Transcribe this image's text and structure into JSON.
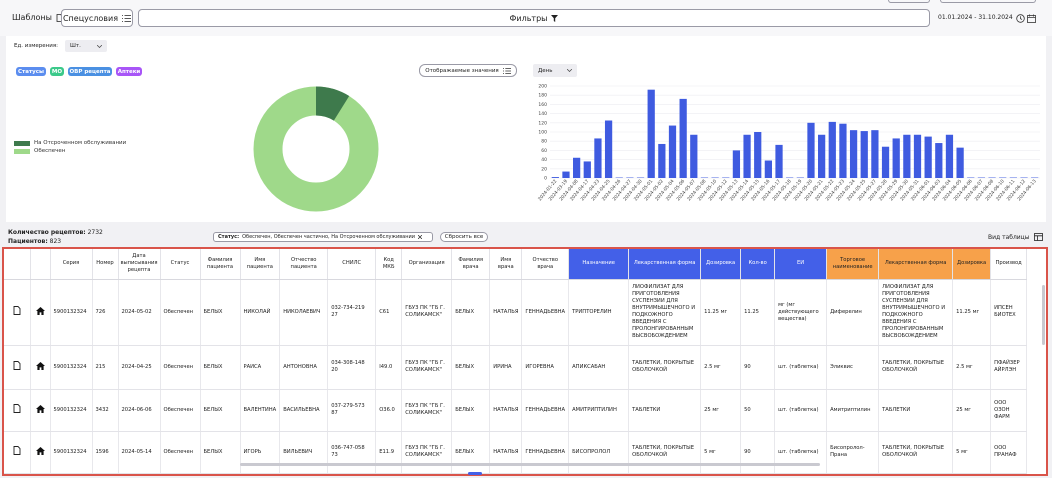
{
  "toolbar": {
    "templates_label": "Шаблоны",
    "special_label": "Спецусловия",
    "filters_label": "Фильтры",
    "date_range": "01.01.2024 - 31.10.2024"
  },
  "panel": {
    "unit_label": "Ед. измерения:",
    "unit_value": "Шт.",
    "tags": [
      {
        "label": "Статусы",
        "color": "#5b8def"
      },
      {
        "label": "МО",
        "color": "#3bc98a"
      },
      {
        "label": "ОВР рецепта",
        "color": "#4a90e2"
      },
      {
        "label": "Аптеки",
        "color": "#a855f7"
      }
    ],
    "display_values_label": "Отображаемые значения",
    "period_value": "День"
  },
  "donut": {
    "legend": [
      {
        "label": "На Отсроченном обслуживании",
        "color": "#3e7a4c"
      },
      {
        "label": "Обеспечен",
        "color": "#9fd98a"
      }
    ]
  },
  "chart_data": {
    "type": "bar",
    "ylim": [
      0,
      200
    ],
    "yticks": [
      "0",
      "20",
      "40",
      "60",
      "80",
      "100",
      "120",
      "140",
      "160",
      "180",
      "200"
    ],
    "categories": [
      "2024-01-22",
      "2024-03-19",
      "2024-04-08",
      "2024-04-17",
      "2024-04-23",
      "2024-04-25",
      "2024-04-26",
      "2024-04-27",
      "2024-04-30",
      "2024-05-01",
      "2024-05-02",
      "2024-05-04",
      "2024-05-06",
      "2024-05-07",
      "2024-05-08",
      "2024-05-10",
      "2024-05-12",
      "2024-05-13",
      "2024-05-14",
      "2024-05-15",
      "2024-05-16",
      "2024-05-17",
      "2024-05-18",
      "2024-05-19",
      "2024-05-20",
      "2024-05-21",
      "2024-05-22",
      "2024-05-23",
      "2024-05-24",
      "2024-05-25",
      "2024-05-27",
      "2024-05-28",
      "2024-05-29",
      "2024-05-30",
      "2024-05-31",
      "2024-06-01",
      "2024-06-03",
      "2024-06-04",
      "2024-06-05",
      "2024-06-06",
      "2024-06-07",
      "2024-06-08",
      "2024-06-10",
      "2024-06-11",
      "2024-06-12",
      "2024-06-13"
    ],
    "values": [
      2,
      14,
      44,
      36,
      86,
      125,
      1,
      1,
      1,
      192,
      74,
      114,
      172,
      94,
      1,
      1,
      1,
      60,
      94,
      100,
      38,
      72,
      1,
      1,
      120,
      94,
      122,
      118,
      104,
      102,
      104,
      68,
      86,
      94,
      94,
      90,
      76,
      94,
      66,
      1,
      1,
      1,
      1,
      1,
      1,
      1
    ],
    "color": "#3f5be0"
  },
  "stats": {
    "recipes_label": "Количество рецептов:",
    "recipes_value": "2732",
    "patients_label": "Пациентов:",
    "patients_value": "823",
    "status_filter_label": "Статус:",
    "status_filter_value": "Обеспечен, Обеспечен частично, На Отсроченном обслуживании",
    "reset_label": "Сбросить все",
    "table_view_label": "Вид таблицы"
  },
  "table": {
    "headers": [
      "Серия",
      "Номер",
      "Дата выписывания рецепта",
      "Статус",
      "Фамилия пациента",
      "Имя пациента",
      "Отчество пациента",
      "СНИЛС",
      "Код МКБ",
      "Организация",
      "Фамилия врача",
      "Имя врача",
      "Отчество врача",
      "Назначение",
      "Лекарственная форма",
      "Дозировка",
      "Кол-во",
      "ЕИ",
      "Торговое наименование",
      "Лекарственная форма",
      "Дозировка",
      "Производ"
    ],
    "rows": [
      [
        "5900132324",
        "726",
        "2024-05-02",
        "Обеспечен",
        "БЕЛЫХ",
        "НИКОЛАЙ",
        "НИКОЛАЕВИЧ",
        "032-734-219 27",
        "C61",
        "ГБУЗ ПК \"ГБ Г. СОЛИКАМСК\"",
        "БЕЛЫХ",
        "НАТАЛЬЯ",
        "ГЕННАДЬЕВНА",
        "ТРИПТОРЕЛИН",
        "ЛИОФИЛИЗАТ ДЛЯ ПРИГОТОВЛЕНИЯ СУСПЕНЗИИ ДЛЯ ВНУТРИМЫШЕЧНОГО И ПОДКОЖНОГО ВВЕДЕНИЯ С ПРОЛОНГИРОВАННЫМ ВЫСВОБОЖДЕНИЕМ",
        "11.25 мг",
        "11.25",
        "мг (мг действующего вещества)",
        "Диферелин",
        "ЛИОФИЛИЗАТ ДЛЯ ПРИГОТОВЛЕНИЯ СУСПЕНЗИИ ДЛЯ ВНУТРИМЫШЕЧНОГО И ПОДКОЖНОГО ВВЕДЕНИЯ С ПРОЛОНГИРОВАННЫМ ВЫСВОБОЖДЕНИЕМ",
        "11.25 мг",
        "ИПСЕН БИОТЕХ"
      ],
      [
        "5900132324",
        "215",
        "2024-04-25",
        "Обеспечен",
        "БЕЛЫХ",
        "РАИСА",
        "АНТОНОВНА",
        "034-308-148 20",
        "I49.0",
        "ГБУЗ ПК \"ГБ Г. СОЛИКАМСК\"",
        "БЕЛЫХ",
        "ИРИНА",
        "ИГОРЕВНА",
        "АПИКСАБАН",
        "ТАБЛЕТКИ, ПОКРЫТЫЕ ОБОЛОЧКОЙ",
        "2.5 мг",
        "90",
        "шт. (таблетка)",
        "Эликвис",
        "ТАБЛЕТКИ, ПОКРЫТЫЕ ОБОЛОЧКОЙ",
        "2.5 мг",
        "ПФАЙЗЕР АЙРЛЭН"
      ],
      [
        "5900132324",
        "3432",
        "2024-06-06",
        "Обеспечен",
        "БЕЛЫХ",
        "ВАЛЕНТИНА",
        "ВАСИЛЬЕВНА",
        "037-279-573 87",
        "O36.0",
        "ГБУЗ ПК \"ГБ Г. СОЛИКАМСК\"",
        "БЕЛЫХ",
        "НАТАЛЬЯ",
        "ГЕННАДЬЕВНА",
        "АМИТРИПТИЛИН",
        "ТАБЛЕТКИ",
        "25 мг",
        "50",
        "шт. (таблетка)",
        "Амитриптилин",
        "ТАБЛЕТКИ",
        "25 мг",
        "ООО ОЗОН ФАРМ"
      ],
      [
        "5900132324",
        "1596",
        "2024-05-14",
        "Обеспечен",
        "БЕЛЫХ",
        "ИГОРЬ",
        "ВИЛЬЕВИЧ",
        "036-747-058 73",
        "E11.9",
        "ГБУЗ ПК \"ГБ Г. СОЛИКАМСК\"",
        "БЕЛЫХ",
        "НАТАЛЬЯ",
        "ГЕННАДЬЕВНА",
        "БИСОПРОЛОЛ",
        "ТАБЛЕТКИ, ПОКРЫТЫЕ ОБОЛОЧКОЙ",
        "5 мг",
        "90",
        "шт. (таблетка)",
        "Бисопролол-Прана",
        "ТАБЛЕТКИ, ПОКРЫТЫЕ ОБОЛОЧКОЙ",
        "5 мг",
        "ООО ПРАНАФ"
      ]
    ]
  }
}
